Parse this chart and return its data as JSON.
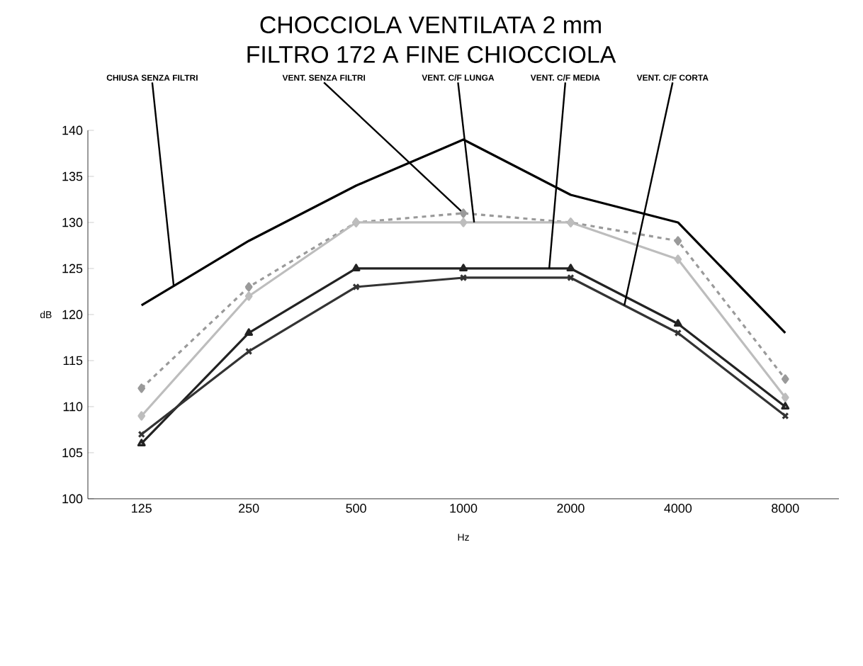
{
  "chart_data": {
    "type": "line",
    "title": "CHOCCIOLA VENTILATA 2 mm",
    "subtitle": "FILTRO 172 A FINE CHIOCCIOLA",
    "xlabel": "Hz",
    "ylabel": "dB",
    "categories": [
      "125",
      "250",
      "500",
      "1000",
      "2000",
      "4000",
      "8000"
    ],
    "ylim": [
      100,
      140
    ],
    "yticks": [
      100,
      105,
      110,
      115,
      120,
      125,
      130,
      135,
      140
    ],
    "grid": false,
    "legend": false,
    "series": [
      {
        "name": "CHIUSA SENZA FILTRI",
        "color": "#000000",
        "marker": "none",
        "line_style": "solid",
        "values": [
          121,
          128,
          134,
          139,
          133,
          130,
          118
        ]
      },
      {
        "name": "VENT. SENZA FILTRI",
        "color": "#9a9a9a",
        "marker": "diamond",
        "line_style": "dashed",
        "values": [
          112,
          123,
          130,
          131,
          130,
          128,
          113
        ]
      },
      {
        "name": "VENT. C/F LUNGA",
        "color": "#bdbdbd",
        "marker": "diamond",
        "line_style": "solid",
        "values": [
          109,
          122,
          130,
          130,
          130,
          126,
          111
        ]
      },
      {
        "name": "VENT. C/F MEDIA",
        "color": "#222222",
        "marker": "triangle",
        "line_style": "solid",
        "values": [
          106,
          118,
          125,
          125,
          125,
          119,
          110
        ]
      },
      {
        "name": "VENT. C/F CORTA",
        "color": "#333333",
        "marker": "cross",
        "line_style": "solid",
        "values": [
          107,
          116,
          123,
          124,
          124,
          118,
          109
        ]
      }
    ]
  }
}
